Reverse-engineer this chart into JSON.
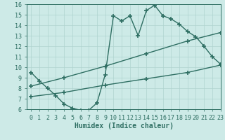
{
  "curve1_x": [
    0,
    1,
    2,
    3,
    4,
    5,
    6,
    7,
    8,
    9,
    10,
    11,
    12,
    13,
    14,
    15,
    16,
    17,
    18,
    19,
    20,
    21,
    22,
    23
  ],
  "curve1_y": [
    9.5,
    8.7,
    8.0,
    7.3,
    6.5,
    6.1,
    5.9,
    5.9,
    6.6,
    9.3,
    14.9,
    14.4,
    14.9,
    13.0,
    15.4,
    15.9,
    14.9,
    14.6,
    14.1,
    13.4,
    12.9,
    12.0,
    11.0,
    10.3
  ],
  "line2_x": [
    0,
    4,
    9,
    14,
    19,
    23
  ],
  "line2_y": [
    8.2,
    9.0,
    10.1,
    11.3,
    12.5,
    13.3
  ],
  "line3_x": [
    0,
    4,
    9,
    14,
    19,
    23
  ],
  "line3_y": [
    7.2,
    7.6,
    8.3,
    8.9,
    9.5,
    10.2
  ],
  "color": "#2e6e62",
  "bg_color": "#cdeae7",
  "grid_color": "#afd4d0",
  "xlabel": "Humidex (Indice chaleur)",
  "ylim": [
    6,
    16
  ],
  "xlim": [
    -0.5,
    23
  ],
  "yticks": [
    6,
    7,
    8,
    9,
    10,
    11,
    12,
    13,
    14,
    15,
    16
  ],
  "xticks": [
    0,
    1,
    2,
    3,
    4,
    5,
    6,
    7,
    8,
    9,
    10,
    11,
    12,
    13,
    14,
    15,
    16,
    17,
    18,
    19,
    20,
    21,
    22,
    23
  ],
  "marker": "+",
  "markersize": 4,
  "linewidth": 1.0,
  "tick_fontsize": 6,
  "xlabel_fontsize": 7
}
